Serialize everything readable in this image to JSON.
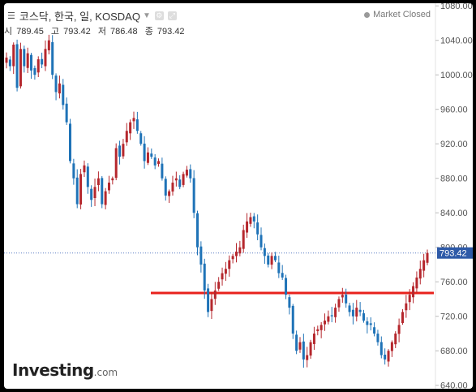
{
  "header": {
    "title": "코스닥, 한국, 일, KOSDAQ",
    "status": "Market Closed"
  },
  "ohlc": {
    "open_label": "시",
    "open": "789.45",
    "high_label": "고",
    "high": "793.42",
    "low_label": "저",
    "low": "786.48",
    "close_label": "종",
    "close": "793.42"
  },
  "logo": {
    "brand": "Investing",
    "suffix": ".com"
  },
  "colors": {
    "up": "#b5272d",
    "down": "#1f73b7",
    "support": "#e8221c",
    "current_price_box": "#2e5aa8"
  },
  "chart_data": {
    "type": "candlestick",
    "y_axis": {
      "range": [
        636,
        1083
      ],
      "ticks": [
        640,
        680,
        720,
        760,
        800,
        840,
        880,
        920,
        960,
        1000,
        1040,
        1080
      ],
      "tick_labels": [
        "640.00",
        "680.00",
        "720.00",
        "760.00",
        "800.00",
        "840.00",
        "880.00",
        "920.00",
        "960.00",
        "1000.00",
        "1040.00",
        "1080.00"
      ],
      "position": "right"
    },
    "current_price": "793.42",
    "current_value": 793.42,
    "support_level": 747,
    "closes": [
      1020,
      1010,
      1035,
      985,
      1030,
      1010,
      1025,
      1005,
      1000,
      1018,
      1012,
      1030,
      1040,
      1000,
      980,
      990,
      965,
      945,
      900,
      880,
      850,
      885,
      895,
      870,
      855,
      870,
      880,
      850,
      865,
      875,
      880,
      915,
      905,
      920,
      935,
      945,
      950,
      935,
      920,
      900,
      910,
      905,
      895,
      900,
      880,
      860,
      865,
      875,
      880,
      870,
      885,
      890,
      880,
      840,
      800,
      780,
      750,
      725,
      740,
      750,
      760,
      770,
      775,
      785,
      790,
      795,
      800,
      820,
      830,
      835,
      830,
      815,
      800,
      790,
      780,
      790,
      785,
      770,
      765,
      745,
      730,
      700,
      680,
      690,
      670,
      675,
      690,
      700,
      705,
      710,
      715,
      720,
      720,
      730,
      740,
      745,
      735,
      725,
      720,
      730,
      725,
      715,
      710,
      710,
      700,
      690,
      675,
      670,
      680,
      690,
      700,
      710,
      725,
      735,
      745,
      755,
      765,
      775,
      785,
      793.42
    ]
  }
}
